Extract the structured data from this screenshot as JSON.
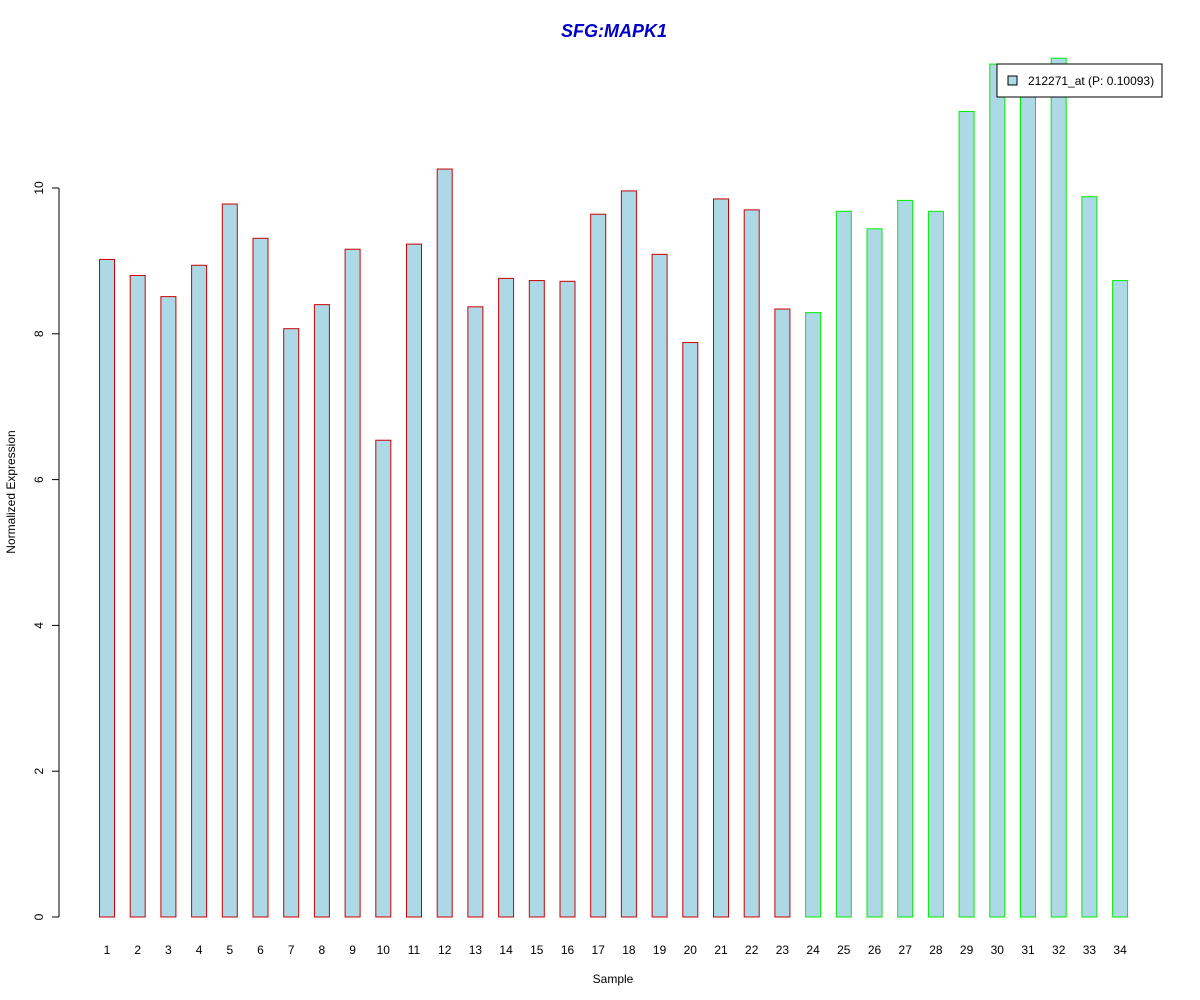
{
  "chart_data": {
    "type": "bar",
    "title": "SFG:MAPK1",
    "xlabel": "Sample",
    "ylabel": "Normalized Expression",
    "ylim": [
      0,
      11.7
    ],
    "yticks": [
      0,
      2,
      4,
      6,
      8,
      10
    ],
    "grid": false,
    "legend": {
      "position": "top-right",
      "entries": [
        "212271_at (P: 0.10093)"
      ]
    },
    "colors": {
      "title": "#0000cc",
      "bar_fill": "#add8e6",
      "group1_border": "#cc0000",
      "group2_border": "#00ee00",
      "axis": "#000000"
    },
    "categories": [
      "1",
      "2",
      "3",
      "4",
      "5",
      "6",
      "7",
      "8",
      "9",
      "10",
      "11",
      "12",
      "13",
      "14",
      "15",
      "16",
      "17",
      "18",
      "19",
      "20",
      "21",
      "22",
      "23",
      "24",
      "25",
      "26",
      "27",
      "28",
      "29",
      "30",
      "31",
      "32",
      "33",
      "34"
    ],
    "values": [
      9.02,
      8.8,
      8.51,
      8.94,
      9.78,
      9.31,
      8.07,
      8.4,
      9.16,
      6.54,
      9.23,
      10.26,
      8.37,
      8.76,
      8.73,
      8.72,
      9.64,
      9.96,
      9.09,
      7.88,
      9.85,
      9.7,
      8.34,
      8.29,
      9.68,
      9.44,
      9.83,
      9.68,
      11.05,
      11.7,
      11.7,
      11.78,
      9.88,
      8.73
    ],
    "groups": [
      1,
      1,
      1,
      1,
      1,
      1,
      1,
      1,
      1,
      1,
      1,
      1,
      1,
      1,
      1,
      1,
      1,
      1,
      1,
      1,
      1,
      1,
      1,
      2,
      2,
      2,
      2,
      2,
      2,
      2,
      2,
      2,
      2,
      2
    ]
  }
}
